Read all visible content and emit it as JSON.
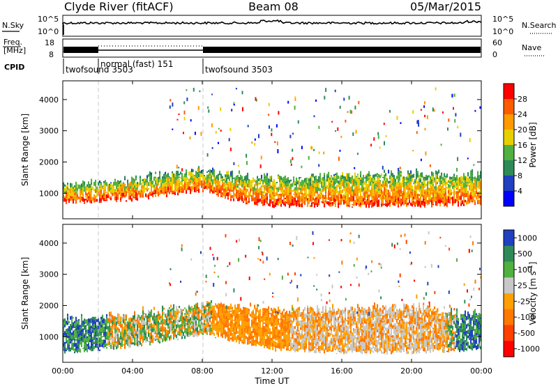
{
  "header": {
    "station": "Clyde River (fitACF)",
    "beam": "Beam 08",
    "date": "05/Mar/2015"
  },
  "colors": {
    "background": "#ffffff",
    "frame": "#000000",
    "mode_change_line": "#c0c0c0"
  },
  "noise_panel": {
    "left_label": "N.Sky",
    "right_label": "N.Search",
    "left_ticks": [
      "10^5",
      "10^0"
    ],
    "right_ticks": [
      "10^5",
      "10^0"
    ]
  },
  "freq_panel": {
    "left_label_1": "Freq.",
    "left_label_2": "[MHz]",
    "right_label": "Nave",
    "left_ticks": [
      "18",
      "8"
    ],
    "right_ticks": [
      "60",
      "0"
    ]
  },
  "cpid": {
    "label": "CPID",
    "segments": [
      {
        "start_hour": 0,
        "text": "twofsound 3503"
      },
      {
        "start_hour": 2.0,
        "text": "normal (fast) 151"
      },
      {
        "start_hour": 8.0,
        "text": "twofsound 3503"
      }
    ]
  },
  "x_axis": {
    "label": "Time UT",
    "ticks": [
      "00:00",
      "04:00",
      "08:00",
      "12:00",
      "16:00",
      "20:00",
      "00:00"
    ],
    "range_hours": [
      0,
      24
    ]
  },
  "chart_data": [
    {
      "type": "heatmap",
      "ylabel": "Slant Range [km]",
      "ylim": [
        180,
        4600
      ],
      "yticks": [
        1000,
        2000,
        3000,
        4000
      ],
      "x_range_hours": [
        0,
        24
      ],
      "colorbar": {
        "label": "Power [dB]",
        "tick_labels": [
          "28",
          "24",
          "20",
          "16",
          "12",
          "8",
          "4"
        ],
        "colors": [
          "#ff0000",
          "#ff5a00",
          "#ff9a00",
          "#e8d000",
          "#50b040",
          "#2e8b57",
          "#2040c0",
          "#0000ff"
        ]
      },
      "main_scatter_band_km": [
        {
          "hour": 0,
          "low": 700,
          "high": 1200
        },
        {
          "hour": 2,
          "low": 750,
          "high": 1250
        },
        {
          "hour": 4,
          "low": 800,
          "high": 1350
        },
        {
          "hour": 6,
          "low": 950,
          "high": 1550
        },
        {
          "hour": 8,
          "low": 1100,
          "high": 1600
        },
        {
          "hour": 10,
          "low": 750,
          "high": 1500
        },
        {
          "hour": 12,
          "low": 600,
          "high": 1400
        },
        {
          "hour": 16,
          "low": 600,
          "high": 1500
        },
        {
          "hour": 20,
          "low": 600,
          "high": 1550
        },
        {
          "hour": 24,
          "low": 650,
          "high": 1500
        }
      ]
    },
    {
      "type": "heatmap",
      "ylabel": "Slant Range [km]",
      "ylim": [
        180,
        4600
      ],
      "yticks": [
        1000,
        2000,
        3000,
        4000
      ],
      "x_range_hours": [
        0,
        24
      ],
      "colorbar": {
        "label": "Velocity [m s^-1]",
        "tick_labels": [
          "1000",
          "500",
          "100",
          "25",
          "-25",
          "-100",
          "-500",
          "-1000"
        ],
        "colors": [
          "#2040c0",
          "#2e8b57",
          "#50b040",
          "#c8c8c8",
          "#ffa000",
          "#ff7800",
          "#ff4000",
          "#ff0000"
        ]
      },
      "main_scatter_band_km": [
        {
          "hour": 0,
          "low": 500,
          "high": 1500
        },
        {
          "hour": 4,
          "low": 700,
          "high": 1600
        },
        {
          "hour": 8,
          "low": 1100,
          "high": 2000
        },
        {
          "hour": 12,
          "low": 600,
          "high": 1800
        },
        {
          "hour": 16,
          "low": 500,
          "high": 1800
        },
        {
          "hour": 20,
          "low": 500,
          "high": 1900
        },
        {
          "hour": 24,
          "low": 600,
          "high": 1600
        }
      ]
    }
  ]
}
